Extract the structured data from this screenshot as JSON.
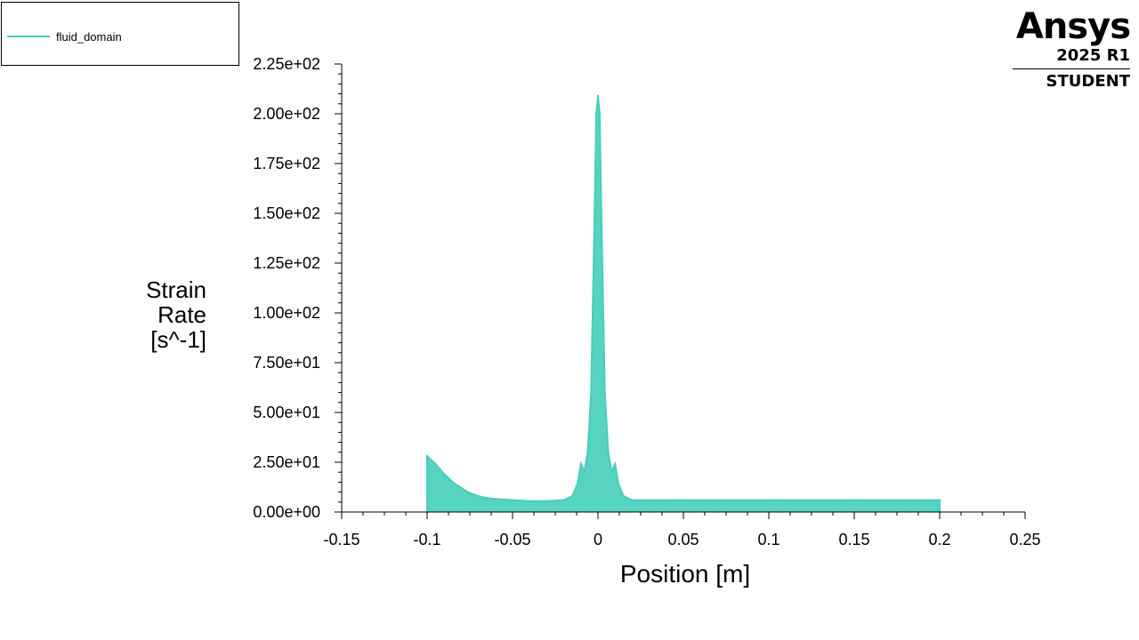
{
  "legend": {
    "entries": [
      {
        "label": "fluid_domain",
        "color": "#45cfb9"
      }
    ]
  },
  "logo": {
    "brand": "Ansys",
    "version": "2025 R1",
    "edition": "STUDENT"
  },
  "chart_data": {
    "type": "line",
    "title": "",
    "xlabel": "Position [m]",
    "ylabel": "Strain Rate [s^-1]",
    "ylabel_lines": [
      "Strain",
      "Rate",
      "[s^-1]"
    ],
    "xlim": [
      -0.15,
      0.25
    ],
    "ylim": [
      0,
      225
    ],
    "x_ticks": [
      -0.15,
      -0.1,
      -0.05,
      0,
      0.05,
      0.1,
      0.15,
      0.2,
      0.25
    ],
    "x_tick_labels": [
      "-0.15",
      "-0.1",
      "-0.05",
      "0",
      "0.05",
      "0.1",
      "0.15",
      "0.2",
      "0.25"
    ],
    "y_ticks": [
      0,
      25,
      50,
      75,
      100,
      125,
      150,
      175,
      200,
      225
    ],
    "y_tick_labels": [
      "0.00e+00",
      "2.50e+01",
      "5.00e+01",
      "7.50e+01",
      "1.00e+02",
      "1.25e+02",
      "1.50e+02",
      "1.75e+02",
      "2.00e+02",
      "2.25e+02"
    ],
    "grid": false,
    "legend_position": "top-left",
    "series": [
      {
        "name": "fluid_domain",
        "color": "#45cfb9",
        "x": [
          -0.1,
          -0.1,
          -0.095,
          -0.09,
          -0.085,
          -0.08,
          -0.075,
          -0.07,
          -0.065,
          -0.06,
          -0.05,
          -0.04,
          -0.03,
          -0.02,
          -0.015,
          -0.012,
          -0.01,
          -0.008,
          -0.006,
          -0.004,
          -0.002,
          -0.001,
          0,
          0.001,
          0.002,
          0.004,
          0.006,
          0.008,
          0.01,
          0.012,
          0.015,
          0.02,
          0.05,
          0.1,
          0.15,
          0.2,
          0.2
        ],
        "y": [
          0,
          28,
          24,
          19,
          15,
          12,
          9.5,
          8,
          7,
          6.5,
          6,
          5.5,
          5.5,
          6,
          8,
          14,
          24,
          20,
          30,
          60,
          150,
          200,
          209,
          200,
          150,
          60,
          30,
          20,
          24,
          14,
          8,
          6,
          6,
          6,
          6,
          6,
          0
        ]
      }
    ]
  }
}
